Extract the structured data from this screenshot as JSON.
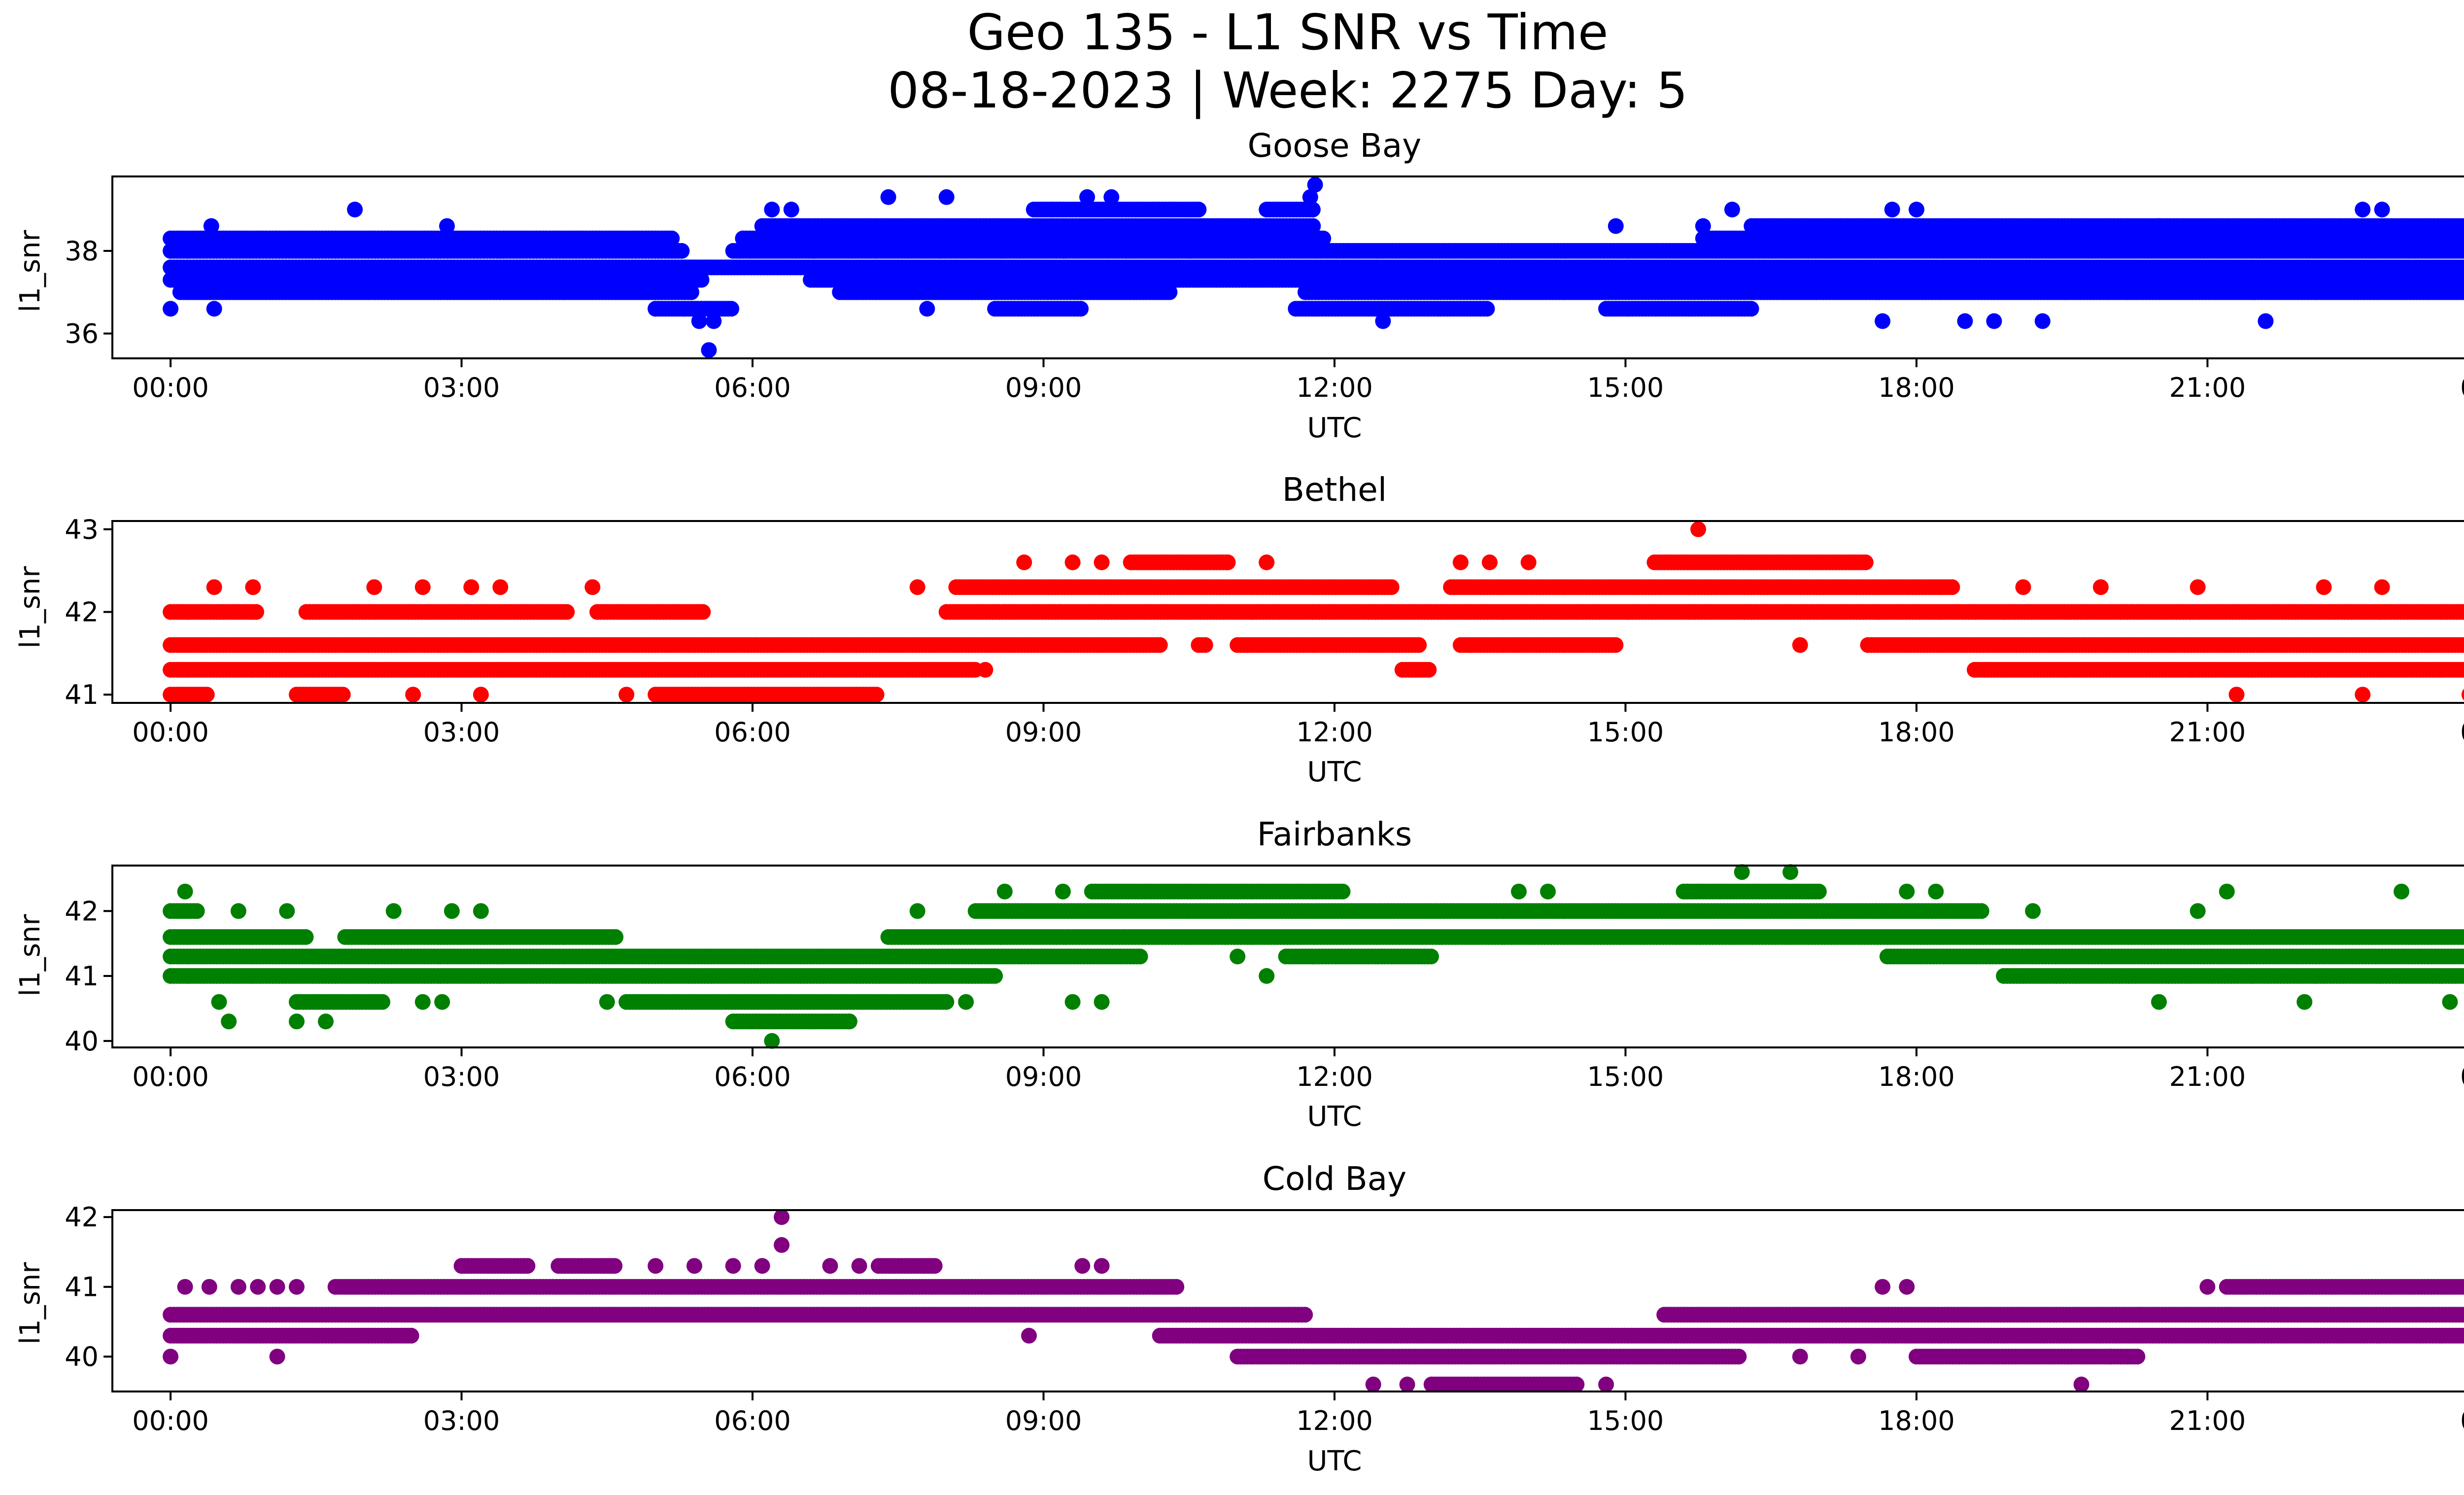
{
  "chart_data": {
    "type": "scatter",
    "suptitle_line1": "Geo 135 - L1 SNR vs Time",
    "suptitle_line2": "08-18-2023 | Week: 2275 Day: 5",
    "x_unit": "UTC hours",
    "xlim": [
      -0.6,
      24.6
    ],
    "xticks": [
      0,
      3,
      6,
      9,
      12,
      15,
      18,
      21,
      24
    ],
    "xtick_labels": [
      "00:00",
      "03:00",
      "06:00",
      "09:00",
      "12:00",
      "15:00",
      "18:00",
      "21:00",
      "00:00"
    ],
    "panels": [
      {
        "title": "Goose Bay",
        "xlabel": "UTC",
        "ylabel": "l1_snr",
        "color": "#0000ff",
        "ylim": [
          35.4,
          39.8
        ],
        "yticks": [
          36,
          38
        ],
        "levels": [
          {
            "y": 37.6,
            "ranges": [
              [
                0.0,
                24.0
              ]
            ]
          },
          {
            "y": 38.0,
            "ranges": [
              [
                0.0,
                5.3
              ],
              [
                5.8,
                24.0
              ]
            ]
          },
          {
            "y": 38.3,
            "ranges": [
              [
                0.0,
                5.2
              ],
              [
                5.9,
                11.9
              ],
              [
                15.8,
                24.0
              ]
            ]
          },
          {
            "y": 37.3,
            "ranges": [
              [
                0.0,
                5.5
              ],
              [
                6.6,
                24.0
              ]
            ]
          },
          {
            "y": 37.0,
            "ranges": [
              [
                0.1,
                5.4
              ],
              [
                6.9,
                10.3
              ],
              [
                11.7,
                24.0
              ]
            ]
          },
          {
            "y": 38.6,
            "ranges": [
              [
                6.1,
                11.8
              ],
              [
                16.3,
                23.8
              ]
            ]
          },
          {
            "y": 36.6,
            "ranges": [
              [
                5.0,
                5.8
              ],
              [
                8.5,
                9.4
              ],
              [
                11.6,
                13.6
              ],
              [
                14.8,
                16.3
              ]
            ]
          },
          {
            "y": 39.0,
            "ranges": [
              [
                8.9,
                10.6
              ],
              [
                11.3,
                11.8
              ]
            ]
          }
        ],
        "points": [
          [
            0.0,
            36.6
          ],
          [
            0.42,
            38.6
          ],
          [
            0.45,
            36.6
          ],
          [
            1.9,
            39.0
          ],
          [
            2.85,
            38.6
          ],
          [
            5.0,
            36.6
          ],
          [
            5.3,
            36.6
          ],
          [
            5.45,
            36.3
          ],
          [
            5.55,
            35.6
          ],
          [
            5.6,
            36.3
          ],
          [
            6.2,
            39.0
          ],
          [
            6.4,
            39.0
          ],
          [
            7.4,
            39.3
          ],
          [
            7.8,
            36.6
          ],
          [
            8.0,
            39.3
          ],
          [
            9.1,
            39.0
          ],
          [
            9.45,
            39.3
          ],
          [
            9.7,
            39.3
          ],
          [
            11.8,
            39.6
          ],
          [
            11.75,
            39.3
          ],
          [
            12.5,
            36.3
          ],
          [
            14.9,
            38.6
          ],
          [
            15.8,
            38.6
          ],
          [
            16.1,
            39.0
          ],
          [
            17.65,
            36.3
          ],
          [
            17.75,
            39.0
          ],
          [
            18.0,
            39.0
          ],
          [
            18.5,
            36.3
          ],
          [
            18.8,
            36.3
          ],
          [
            19.3,
            36.3
          ],
          [
            20.5,
            38.6
          ],
          [
            21.6,
            36.3
          ],
          [
            22.6,
            39.0
          ],
          [
            22.8,
            39.0
          ]
        ]
      },
      {
        "title": "Bethel",
        "xlabel": "UTC",
        "ylabel": "l1_snr",
        "color": "#ff0000",
        "ylim": [
          40.9,
          43.1
        ],
        "yticks": [
          41,
          42,
          43
        ],
        "levels": [
          {
            "y": 41.6,
            "ranges": [
              [
                0.0,
                10.2
              ],
              [
                10.6,
                10.7
              ],
              [
                11.0,
                12.9
              ],
              [
                13.3,
                14.9
              ],
              [
                17.5,
                24.0
              ]
            ]
          },
          {
            "y": 41.3,
            "ranges": [
              [
                0.0,
                8.3
              ],
              [
                12.7,
                13.0
              ],
              [
                18.6,
                24.0
              ]
            ]
          },
          {
            "y": 42.0,
            "ranges": [
              [
                0.0,
                0.9
              ],
              [
                1.4,
                4.1
              ],
              [
                4.4,
                5.5
              ],
              [
                8.0,
                24.0
              ]
            ]
          },
          {
            "y": 41.0,
            "ranges": [
              [
                0.0,
                0.4
              ],
              [
                1.3,
                1.8
              ],
              [
                5.0,
                7.3
              ]
            ]
          },
          {
            "y": 42.3,
            "ranges": [
              [
                8.1,
                12.6
              ],
              [
                13.2,
                18.4
              ]
            ]
          },
          {
            "y": 42.6,
            "ranges": [
              [
                9.9,
                10.9
              ],
              [
                15.3,
                17.5
              ]
            ]
          }
        ],
        "points": [
          [
            0.45,
            42.3
          ],
          [
            0.85,
            42.3
          ],
          [
            2.1,
            42.3
          ],
          [
            2.6,
            42.3
          ],
          [
            3.1,
            42.3
          ],
          [
            3.4,
            42.3
          ],
          [
            4.35,
            42.3
          ],
          [
            2.5,
            41.0
          ],
          [
            3.2,
            41.0
          ],
          [
            4.7,
            41.0
          ],
          [
            7.7,
            42.3
          ],
          [
            8.4,
            41.3
          ],
          [
            8.8,
            42.6
          ],
          [
            9.3,
            42.6
          ],
          [
            9.6,
            42.6
          ],
          [
            10.9,
            42.6
          ],
          [
            11.3,
            42.6
          ],
          [
            13.3,
            42.6
          ],
          [
            13.6,
            42.6
          ],
          [
            14.0,
            42.6
          ],
          [
            15.75,
            43.0
          ],
          [
            16.8,
            41.6
          ],
          [
            19.1,
            42.3
          ],
          [
            19.9,
            42.3
          ],
          [
            20.9,
            42.3
          ],
          [
            21.3,
            41.0
          ],
          [
            22.2,
            42.3
          ],
          [
            22.8,
            42.3
          ],
          [
            22.6,
            41.0
          ],
          [
            23.7,
            41.0
          ],
          [
            24.0,
            41.0
          ]
        ]
      },
      {
        "title": "Fairbanks",
        "xlabel": "UTC",
        "ylabel": "l1_snr",
        "color": "#008000",
        "ylim": [
          39.9,
          42.7
        ],
        "yticks": [
          40,
          41,
          42
        ],
        "levels": [
          {
            "y": 41.3,
            "ranges": [
              [
                0.0,
                10.0
              ],
              [
                11.5,
                13.0
              ],
              [
                17.7,
                24.0
              ]
            ]
          },
          {
            "y": 41.6,
            "ranges": [
              [
                0.0,
                1.4
              ],
              [
                1.8,
                4.6
              ],
              [
                7.4,
                24.0
              ]
            ]
          },
          {
            "y": 41.0,
            "ranges": [
              [
                0.0,
                8.5
              ],
              [
                18.9,
                24.0
              ]
            ]
          },
          {
            "y": 42.0,
            "ranges": [
              [
                0.0,
                0.3
              ],
              [
                8.3,
                18.7
              ]
            ]
          },
          {
            "y": 40.6,
            "ranges": [
              [
                1.3,
                2.2
              ],
              [
                4.7,
                8.0
              ]
            ]
          },
          {
            "y": 42.3,
            "ranges": [
              [
                9.5,
                12.1
              ],
              [
                15.6,
                17.0
              ]
            ]
          },
          {
            "y": 40.3,
            "ranges": [
              [
                5.8,
                7.0
              ]
            ]
          }
        ],
        "points": [
          [
            0.15,
            42.3
          ],
          [
            0.6,
            40.3
          ],
          [
            0.5,
            40.6
          ],
          [
            0.7,
            42.0
          ],
          [
            1.2,
            42.0
          ],
          [
            1.3,
            40.3
          ],
          [
            1.6,
            40.3
          ],
          [
            2.3,
            42.0
          ],
          [
            2.6,
            40.6
          ],
          [
            2.9,
            42.0
          ],
          [
            3.2,
            42.0
          ],
          [
            2.8,
            40.6
          ],
          [
            4.5,
            40.6
          ],
          [
            6.2,
            40.0
          ],
          [
            7.0,
            40.3
          ],
          [
            7.7,
            42.0
          ],
          [
            8.2,
            40.6
          ],
          [
            8.6,
            42.3
          ],
          [
            9.2,
            42.3
          ],
          [
            9.3,
            40.6
          ],
          [
            9.6,
            40.6
          ],
          [
            11.0,
            41.3
          ],
          [
            11.3,
            41.0
          ],
          [
            13.9,
            42.3
          ],
          [
            14.2,
            42.3
          ],
          [
            16.2,
            42.6
          ],
          [
            16.7,
            42.6
          ],
          [
            17.9,
            42.3
          ],
          [
            18.2,
            42.3
          ],
          [
            19.2,
            42.0
          ],
          [
            20.5,
            40.6
          ],
          [
            20.9,
            42.0
          ],
          [
            21.2,
            42.3
          ],
          [
            22.0,
            40.6
          ],
          [
            23.0,
            42.3
          ],
          [
            23.5,
            40.6
          ],
          [
            23.9,
            42.3
          ]
        ]
      },
      {
        "title": "Cold Bay",
        "xlabel": "UTC",
        "ylabel": "l1_snr",
        "color": "#800080",
        "ylim": [
          39.5,
          42.1
        ],
        "yticks": [
          40,
          41,
          42
        ],
        "levels": [
          {
            "y": 40.6,
            "ranges": [
              [
                0.0,
                11.7
              ],
              [
                15.4,
                24.0
              ]
            ]
          },
          {
            "y": 40.3,
            "ranges": [
              [
                0.0,
                2.5
              ],
              [
                10.2,
                24.0
              ]
            ]
          },
          {
            "y": 41.0,
            "ranges": [
              [
                1.7,
                10.4
              ],
              [
                21.2,
                24.0
              ]
            ]
          },
          {
            "y": 40.0,
            "ranges": [
              [
                11.0,
                16.2
              ],
              [
                18.0,
                20.3
              ]
            ]
          },
          {
            "y": 41.3,
            "ranges": [
              [
                3.0,
                3.7
              ],
              [
                4.0,
                4.6
              ],
              [
                7.3,
                7.9
              ]
            ]
          },
          {
            "y": 39.6,
            "ranges": [
              [
                13.0,
                14.5
              ]
            ]
          }
        ],
        "points": [
          [
            0.0,
            40.0
          ],
          [
            0.15,
            41.0
          ],
          [
            0.4,
            41.0
          ],
          [
            0.7,
            41.0
          ],
          [
            0.9,
            41.0
          ],
          [
            1.1,
            41.0
          ],
          [
            1.3,
            41.0
          ],
          [
            1.1,
            40.0
          ],
          [
            5.0,
            41.3
          ],
          [
            5.4,
            41.3
          ],
          [
            5.8,
            41.3
          ],
          [
            6.1,
            41.3
          ],
          [
            6.3,
            41.6
          ],
          [
            6.3,
            42.0
          ],
          [
            6.8,
            41.3
          ],
          [
            7.1,
            41.3
          ],
          [
            8.85,
            40.3
          ],
          [
            9.4,
            41.3
          ],
          [
            9.6,
            41.3
          ],
          [
            12.4,
            39.6
          ],
          [
            12.75,
            39.6
          ],
          [
            14.8,
            39.6
          ],
          [
            16.8,
            40.0
          ],
          [
            17.4,
            40.0
          ],
          [
            17.65,
            41.0
          ],
          [
            17.9,
            41.0
          ],
          [
            19.7,
            39.6
          ],
          [
            20.0,
            40.0
          ],
          [
            20.3,
            40.6
          ],
          [
            21.0,
            41.0
          ],
          [
            23.9,
            40.3
          ]
        ]
      }
    ]
  }
}
